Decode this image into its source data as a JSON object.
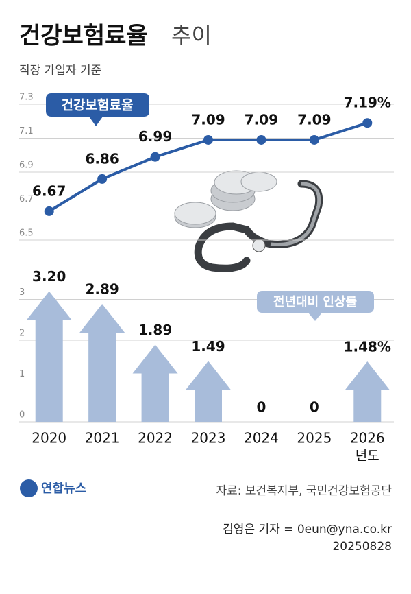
{
  "header": {
    "title": "건강보험료율",
    "title_light": "추이",
    "subtitle": "직장 가입자 기준"
  },
  "chart_data": [
    {
      "type": "line",
      "label": "건강보험료율",
      "color": "#2b5ca6",
      "values": [
        6.67,
        6.86,
        6.99,
        7.09,
        7.09,
        7.09,
        7.19
      ],
      "value_labels": [
        "6.67",
        "6.86",
        "6.99",
        "7.09",
        "7.09",
        "7.09",
        "7.19%"
      ],
      "ylim": [
        6.5,
        7.3
      ],
      "yticks": [
        6.5,
        6.7,
        6.9,
        7.1,
        7.3
      ],
      "grid": true
    },
    {
      "type": "bar",
      "label": "전년대비 인상률",
      "color": "#a8bcda",
      "x_label": "년도",
      "categories": [
        "2020",
        "2021",
        "2022",
        "2023",
        "2024",
        "2025",
        "2026"
      ],
      "values": [
        3.2,
        2.89,
        1.89,
        1.49,
        0,
        0,
        1.48
      ],
      "value_labels": [
        "3.20",
        "2.89",
        "1.89",
        "1.49",
        "0",
        "0",
        "1.48%"
      ],
      "ylim": [
        0,
        3.3
      ],
      "yticks": [
        0,
        1,
        2,
        3
      ],
      "grid": true
    }
  ],
  "footer": {
    "logo": "연합뉴스",
    "source": "자료: 보건복지부, 국민건강보험공단",
    "credit": "김영은 기자 = 0eun@yna.co.kr",
    "date": "20250828"
  }
}
